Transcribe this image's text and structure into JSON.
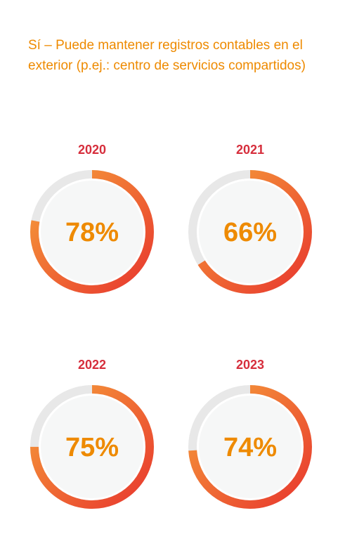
{
  "title": "Sí – Puede mantener registros contables en el exterior (p.ej.: centro de servicios compartidos)",
  "colors": {
    "accent": "#ee8a00",
    "year_label": "#d62e3c",
    "gradient_start": "#f6a03a",
    "gradient_end": "#e8372e",
    "track": "#e8e8e8",
    "inner": "#f6f7f7",
    "percent_text": "#ee8a00"
  },
  "chart_data": {
    "type": "pie",
    "variant": "donut",
    "categories": [
      "2020",
      "2021",
      "2022",
      "2023"
    ],
    "values": [
      78,
      66,
      75,
      74
    ],
    "value_labels": [
      "78%",
      "66%",
      "75%",
      "74%"
    ],
    "unit": "%",
    "ylim": [
      0,
      100
    ],
    "title": "Sí – Puede mantener registros contables en el exterior (p.ej.: centro de servicios compartidos)"
  }
}
